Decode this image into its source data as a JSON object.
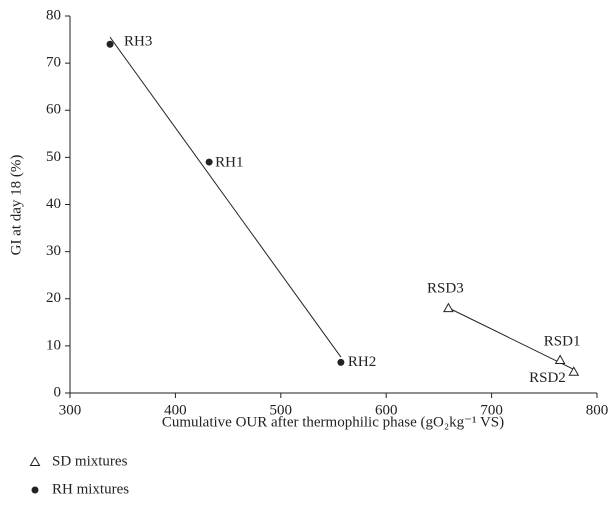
{
  "chart_data": {
    "type": "scatter",
    "xlabel": "Cumulative OUR after thermophilic phase (gO₂kg⁻¹ VS)",
    "ylabel": "GI at day 18 (%)",
    "xlim": [
      300,
      800
    ],
    "xticks": [
      300,
      400,
      500,
      600,
      700,
      800
    ],
    "ylim": [
      0,
      80
    ],
    "yticks": [
      0,
      10,
      20,
      30,
      40,
      50,
      60,
      70,
      80
    ],
    "trendline": true,
    "series": [
      {
        "name": "SD mixtures",
        "marker": "triangle",
        "color": "#222222",
        "labels": [
          "RSD3",
          "RSD1",
          "RSD2"
        ],
        "x": [
          659,
          765,
          778
        ],
        "values": [
          18,
          7,
          4.5
        ]
      },
      {
        "name": "RH mixtures",
        "marker": "circle",
        "color": "#222222",
        "labels": [
          "RH3",
          "RH1",
          "RH2"
        ],
        "x": [
          338,
          432,
          557
        ],
        "values": [
          74,
          49,
          6.5
        ]
      }
    ]
  }
}
